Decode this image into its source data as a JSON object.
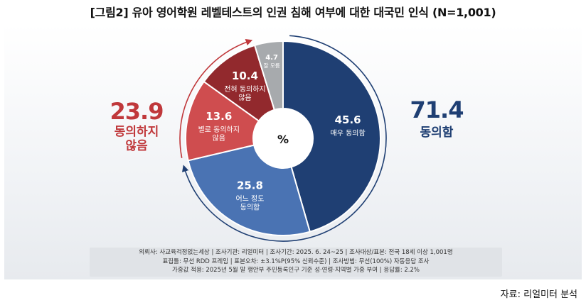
{
  "page": {
    "title": "[그림2] 유아 영어학원 레벨테스트의 인권 침해 여부에 대한 대국민 인식 (N=1,001)",
    "source": "자료: 리얼미터 분석"
  },
  "summary": {
    "disagree_total": "23.9",
    "disagree_label_1": "동의하지",
    "disagree_label_2": "않음",
    "agree_total": "71.4",
    "agree_label": "동의함",
    "center_symbol": "%"
  },
  "survey_info": {
    "line1": "의뢰사: 사교육걱정없는세상 | 조사기관: 리얼미터 |  조사기간: 2025. 6. 24~25 | 조사대상/표본: 전국 18세 이상 1,001명",
    "line2": "표집틀: 무선 RDD 프레임 | 표본오차: ±3.1%P(95% 신뢰수준) | 조사방법: 무선(100%) 자동응답 조사",
    "line3": "가중값 적용: 2025년 5월 말 행안부 주민등록인구 기준 성·연령·지역별 가중 부여 | 응답률: 2.2%"
  },
  "chart_data": {
    "type": "pie",
    "donut": true,
    "unit": "%",
    "slices": [
      {
        "value": 45.6,
        "label_lines": [
          "매우 동의함"
        ],
        "color": "#1f3f73",
        "text_color": "#ffffff"
      },
      {
        "value": 25.8,
        "label_lines": [
          "어느 정도",
          "동의함"
        ],
        "color": "#4a73b3",
        "text_color": "#ffffff"
      },
      {
        "value": 13.6,
        "label_lines": [
          "별로 동의하지",
          "않음"
        ],
        "color": "#cf4d4f",
        "text_color": "#ffffff"
      },
      {
        "value": 10.4,
        "label_lines": [
          "전혀 동의하지",
          "않음"
        ],
        "color": "#92292d",
        "text_color": "#ffffff"
      },
      {
        "value": 4.7,
        "label_lines": [
          "잘 모름"
        ],
        "color": "#a7aaad",
        "text_color": "#ffffff"
      }
    ]
  }
}
